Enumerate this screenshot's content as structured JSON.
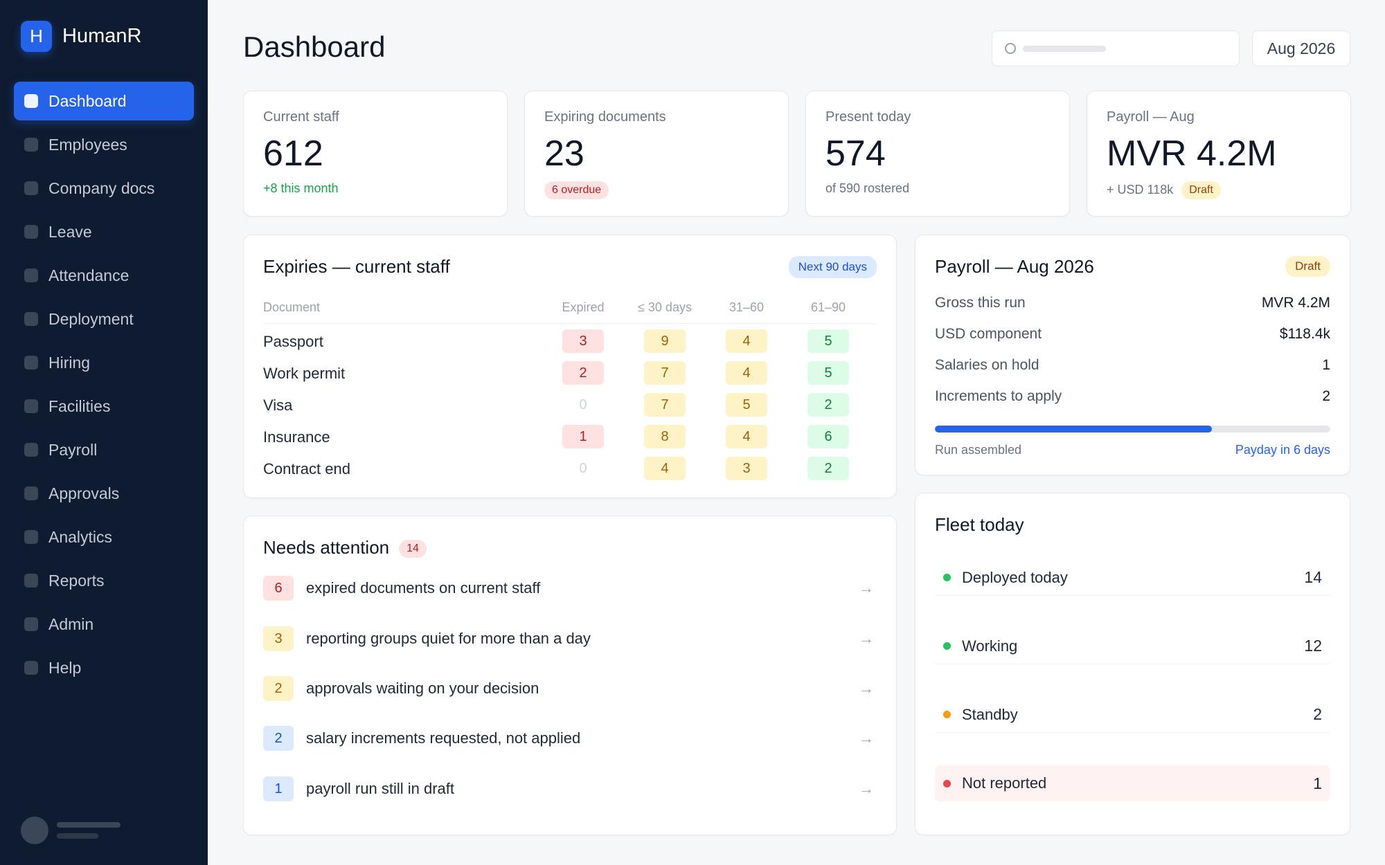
{
  "app": {
    "logo_letter": "H",
    "name": "HumanR"
  },
  "sidebar": {
    "items": [
      {
        "label": "Dashboard",
        "active": true
      },
      {
        "label": "Employees"
      },
      {
        "label": "Company docs"
      },
      {
        "label": "Leave"
      },
      {
        "label": "Attendance"
      },
      {
        "label": "Deployment"
      },
      {
        "label": "Hiring"
      },
      {
        "label": "Facilities"
      },
      {
        "label": "Payroll"
      },
      {
        "label": "Approvals"
      },
      {
        "label": "Analytics"
      },
      {
        "label": "Reports"
      },
      {
        "label": "Admin"
      },
      {
        "label": "Help"
      }
    ]
  },
  "header": {
    "title": "Dashboard",
    "period": "Aug 2026"
  },
  "kpis": {
    "staff": {
      "label": "Current staff",
      "value": "612",
      "sub": "+8 this month"
    },
    "docs": {
      "label": "Expiring documents",
      "value": "23",
      "badge": "6 overdue"
    },
    "present": {
      "label": "Present today",
      "value": "574",
      "sub": "of 590 rostered"
    },
    "payroll": {
      "label": "Payroll — Aug",
      "value": "MVR 4.2M",
      "sub": "+ USD 118k",
      "badge": "Draft"
    }
  },
  "expiries": {
    "title": "Expiries — current staff",
    "badge": "Next 90 days",
    "columns": [
      "Document",
      "Expired",
      "≤ 30 days",
      "31–60",
      "61–90"
    ],
    "rows": [
      {
        "name": "Passport",
        "values": [
          "3",
          "9",
          "4",
          "5"
        ]
      },
      {
        "name": "Work permit",
        "values": [
          "2",
          "7",
          "4",
          "5"
        ]
      },
      {
        "name": "Visa",
        "values": [
          "0",
          "7",
          "5",
          "2"
        ]
      },
      {
        "name": "Insurance",
        "values": [
          "1",
          "8",
          "4",
          "6"
        ]
      },
      {
        "name": "Contract end",
        "values": [
          "0",
          "4",
          "3",
          "2"
        ]
      }
    ]
  },
  "attention": {
    "title": "Needs attention",
    "count": "14",
    "items": [
      {
        "num": "6",
        "text": "expired documents on current staff",
        "tone": "red"
      },
      {
        "num": "3",
        "text": "reporting groups quiet for more than a day",
        "tone": "yellow"
      },
      {
        "num": "2",
        "text": "approvals waiting on your decision",
        "tone": "yellow"
      },
      {
        "num": "2",
        "text": "salary increments requested, not applied",
        "tone": "blue"
      },
      {
        "num": "1",
        "text": "payroll run still in draft",
        "tone": "blue"
      }
    ]
  },
  "payroll": {
    "title": "Payroll — Aug 2026",
    "badge": "Draft",
    "rows": [
      {
        "label": "Gross this run",
        "value": "MVR 4.2M"
      },
      {
        "label": "USD component",
        "value": "$118.4k"
      },
      {
        "label": "Salaries on hold",
        "value": "1"
      },
      {
        "label": "Increments to apply",
        "value": "2"
      }
    ],
    "progress": 0.7,
    "progress_label": "Run assembled",
    "payday": "Payday  in 6 days"
  },
  "fleet": {
    "title": "Fleet today",
    "rows": [
      {
        "label": "Deployed today",
        "value": "14",
        "color": "#22c55e"
      },
      {
        "label": "Working",
        "value": "12",
        "color": "#22c55e"
      },
      {
        "label": "Standby",
        "value": "2",
        "color": "#f59e0b"
      },
      {
        "label": "Not reported",
        "value": "1",
        "color": "#ef4444"
      }
    ]
  },
  "icons": {
    "arrow": "→"
  },
  "colors": {
    "accent": "#2563eb",
    "sidebar_bg": "#0f1b30"
  }
}
